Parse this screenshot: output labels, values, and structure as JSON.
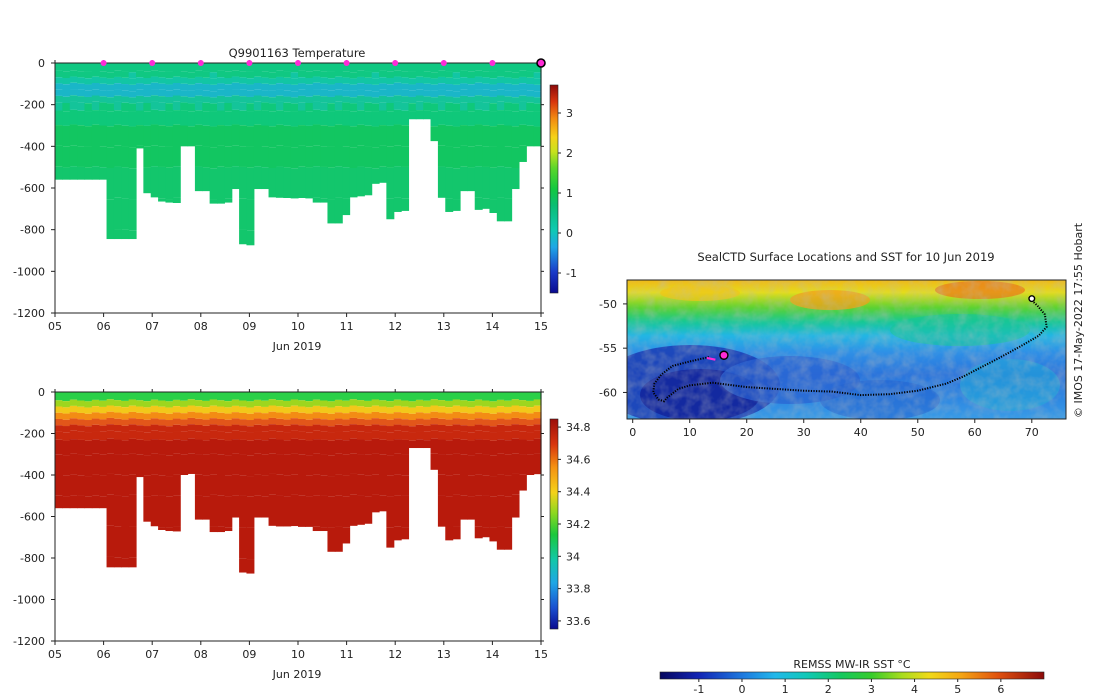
{
  "chart_data": [
    {
      "type": "heatmap",
      "title": "Q9901163  Temperature",
      "xlabel": "Jun 2019",
      "x_ticks": [
        "05",
        "06",
        "07",
        "08",
        "09",
        "10",
        "11",
        "12",
        "13",
        "14",
        "15"
      ],
      "y_ticks": [
        "0",
        "-200",
        "-400",
        "-600",
        "-800",
        "-1000",
        "-1200"
      ],
      "ylim": [
        -1200,
        0
      ],
      "colorbar": {
        "ticks": [
          "-1",
          "0",
          "1",
          "2",
          "3"
        ],
        "range": [
          -1.5,
          3.7
        ]
      },
      "profile_depths_m": [
        560,
        560,
        560,
        560,
        560,
        560,
        560,
        845,
        845,
        845,
        845,
        410,
        625,
        650,
        665,
        670,
        672,
        400,
        400,
        615,
        615,
        675,
        675,
        670,
        605,
        870,
        875,
        605,
        605,
        645,
        648,
        648,
        650,
        650,
        650,
        670,
        670,
        770,
        770,
        730,
        645,
        640,
        635,
        580,
        575,
        750,
        715,
        710,
        270,
        270,
        270,
        375,
        650,
        715,
        710,
        615,
        615,
        705,
        700,
        720,
        760,
        760,
        605,
        475,
        400,
        400
      ],
      "profile_marker_days": [
        6,
        7,
        8,
        9,
        10,
        11,
        12,
        13,
        14
      ],
      "current_position_day": 15
    },
    {
      "type": "heatmap",
      "title": "",
      "xlabel": "Jun 2019",
      "x_ticks": [
        "05",
        "06",
        "07",
        "08",
        "09",
        "10",
        "11",
        "12",
        "13",
        "14",
        "15"
      ],
      "y_ticks": [
        "0",
        "-200",
        "-400",
        "-600",
        "-800",
        "-1000",
        "-1200"
      ],
      "ylim": [
        -1200,
        0
      ],
      "colorbar": {
        "ticks": [
          "33.6",
          "33.8",
          "34",
          "34.2",
          "34.4",
          "34.6",
          "34.8"
        ],
        "range": [
          33.55,
          34.85
        ]
      }
    },
    {
      "type": "map",
      "title": "SealCTD Surface Locations and SST for 10 Jun 2019",
      "x_ticks": [
        "0",
        "10",
        "20",
        "30",
        "40",
        "50",
        "60",
        "70"
      ],
      "y_ticks": [
        "-50",
        "-55",
        "-60"
      ],
      "xlim": [
        -1,
        76
      ],
      "ylim": [
        -63,
        -47.3
      ],
      "track": [
        [
          70,
          -49.6
        ],
        [
          71,
          -50.2
        ],
        [
          72.3,
          -51.2
        ],
        [
          72.6,
          -52.6
        ],
        [
          71.2,
          -53.6
        ],
        [
          68,
          -54.8
        ],
        [
          64,
          -56.2
        ],
        [
          61,
          -57.2
        ],
        [
          58,
          -58.2
        ],
        [
          55,
          -59
        ],
        [
          50,
          -59.8
        ],
        [
          45,
          -60.2
        ],
        [
          40,
          -60.3
        ],
        [
          35,
          -59.9
        ],
        [
          30,
          -59.8
        ],
        [
          25,
          -59.6
        ],
        [
          20,
          -59.4
        ],
        [
          14,
          -58.9
        ],
        [
          10,
          -59.2
        ],
        [
          8,
          -59.6
        ],
        [
          6,
          -60.6
        ],
        [
          5.5,
          -61
        ],
        [
          4.5,
          -60.8
        ],
        [
          3.6,
          -60
        ],
        [
          3.8,
          -59
        ],
        [
          5,
          -58
        ],
        [
          7,
          -57
        ],
        [
          10,
          -56.5
        ],
        [
          12,
          -56.2
        ],
        [
          13.5,
          -56
        ]
      ],
      "track_end": [
        16,
        -55.8
      ],
      "track_recent": [
        [
          13,
          -56.1
        ],
        [
          14.5,
          -56.3
        ]
      ],
      "track_start": [
        70,
        -49.4
      ],
      "colorbar": {
        "label": "REMSS MW-IR SST °C",
        "ticks": [
          "-1",
          "0",
          "1",
          "2",
          "3",
          "4",
          "5",
          "6"
        ],
        "range": [
          -1.9,
          7.0
        ]
      },
      "side_note": "© IMOS 17-May-2022 17:55 Hobart"
    }
  ]
}
